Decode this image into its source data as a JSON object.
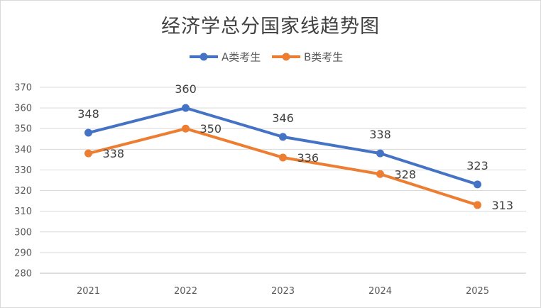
{
  "chart_data": {
    "type": "line",
    "title": "经济学总分国家线趋势图",
    "categories": [
      "2021",
      "2022",
      "2023",
      "2024",
      "2025"
    ],
    "series": [
      {
        "name": "A类考生",
        "values": [
          348,
          360,
          346,
          338,
          323
        ],
        "color": "#4472c4"
      },
      {
        "name": "B类考生",
        "values": [
          338,
          350,
          336,
          328,
          313
        ],
        "color": "#ed7d31"
      }
    ],
    "ylim": [
      280,
      370
    ],
    "yticks": [
      "280",
      "290",
      "300",
      "310",
      "320",
      "330",
      "340",
      "350",
      "360",
      "370"
    ],
    "grid": true,
    "legend": "top-center"
  }
}
